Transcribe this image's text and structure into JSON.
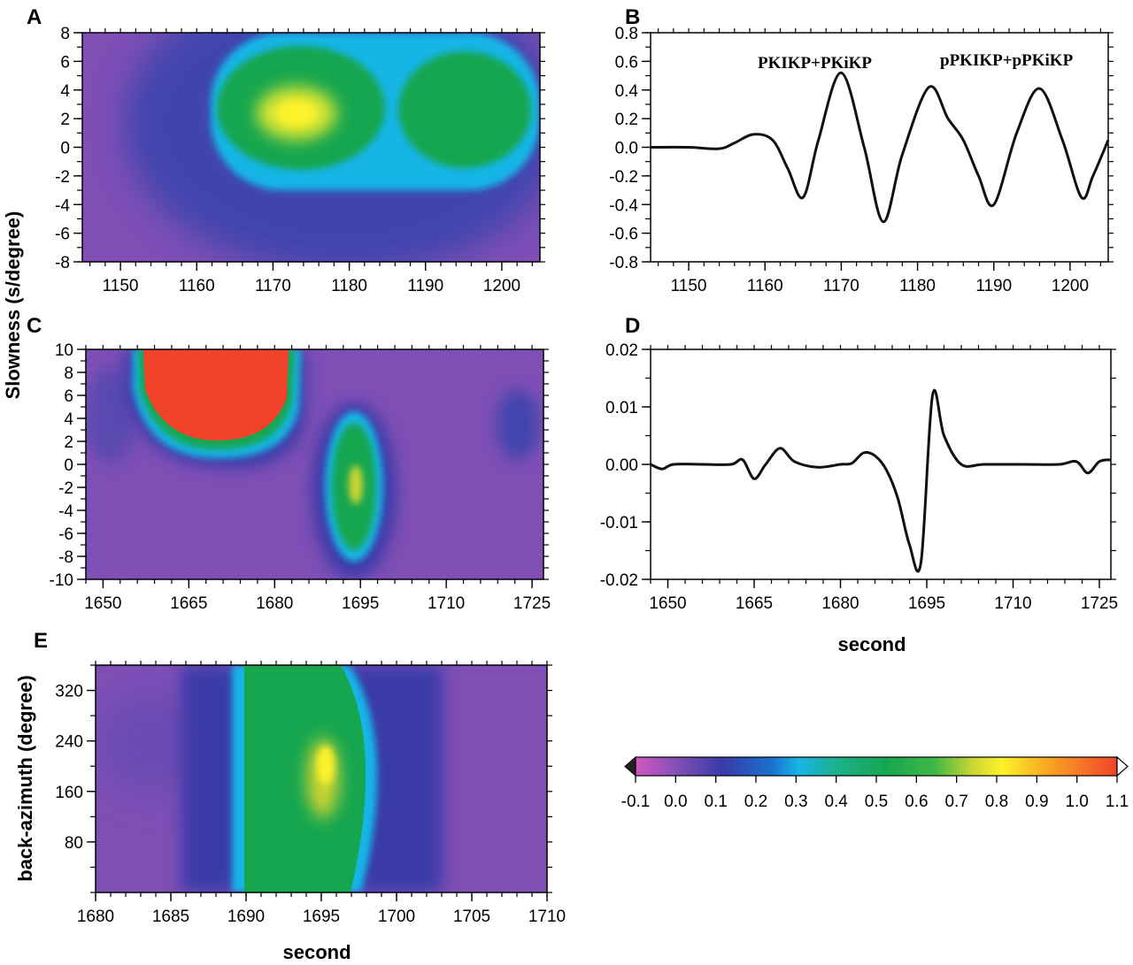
{
  "figure": {
    "shared_ylabel_AC": "Slowness (s/degree)",
    "colorbar": {
      "ticks": [
        "-0.1",
        "0.0",
        "0.1",
        "0.2",
        "0.3",
        "0.4",
        "0.5",
        "0.6",
        "0.7",
        "0.8",
        "0.9",
        "1.0",
        "1.1"
      ],
      "range": [
        -0.1,
        1.1
      ],
      "colormap": [
        "#d257c3",
        "#7f4fb5",
        "#3a3aa8",
        "#1a6fd0",
        "#19b5e6",
        "#1cb08a",
        "#16a650",
        "#3fb845",
        "#cbd433",
        "#fbf22a",
        "#f9a421",
        "#f2432a"
      ]
    }
  },
  "chart_data": [
    {
      "panel": "A",
      "type": "heatmap",
      "xlabel": "",
      "ylabel": "",
      "xlim": [
        1145,
        1205
      ],
      "ylim": [
        -8,
        8
      ],
      "xticks": [
        "1150",
        "1160",
        "1170",
        "1180",
        "1190",
        "1200"
      ],
      "yticks": [
        "8",
        "6",
        "4",
        "2",
        "0",
        "-2",
        "-4",
        "-6",
        "-8"
      ],
      "features": [
        {
          "kind": "broad-energy-lobe",
          "x": 1183,
          "y": 1,
          "peak": 0.28
        },
        {
          "kind": "energy-lobe",
          "x": 1174,
          "y": 1.5,
          "peak": 0.64
        },
        {
          "kind": "energy-lobe",
          "x": 1197,
          "y": 1.5,
          "peak": 0.64
        },
        {
          "kind": "peak",
          "x": 1173,
          "y": 2,
          "peak": 0.85
        }
      ]
    },
    {
      "panel": "B",
      "type": "line",
      "xlabel": "",
      "ylabel": "",
      "xlim": [
        1145,
        1205
      ],
      "ylim": [
        -0.8,
        0.8
      ],
      "xticks": [
        "1150",
        "1160",
        "1170",
        "1180",
        "1190",
        "1200"
      ],
      "yticks": [
        "0.8",
        "0.6",
        "0.4",
        "0.2",
        "0.0",
        "-0.2",
        "-0.4",
        "-0.6",
        "-0.8"
      ],
      "annotations": [
        "PKIKP+PKiKP",
        "pPKIKP+pPKiKP"
      ],
      "x": [
        1145,
        1150,
        1154,
        1156,
        1158.5,
        1161,
        1163,
        1165,
        1167,
        1170,
        1173,
        1175.5,
        1178,
        1181.5,
        1184,
        1186,
        1188,
        1190,
        1193,
        1196,
        1199,
        1201.5,
        1203,
        1205
      ],
      "y": [
        0,
        0,
        -0.01,
        0.03,
        0.09,
        0.05,
        -0.15,
        -0.35,
        0.05,
        0.52,
        0.0,
        -0.52,
        -0.05,
        0.42,
        0.2,
        0.05,
        -0.2,
        -0.4,
        0.1,
        0.41,
        0.05,
        -0.35,
        -0.2,
        0.05
      ]
    },
    {
      "panel": "C",
      "type": "heatmap",
      "xlabel": "",
      "ylabel": "",
      "xlim": [
        1647,
        1727
      ],
      "ylim": [
        -10,
        10
      ],
      "xticks": [
        "1650",
        "1665",
        "1680",
        "1695",
        "1710",
        "1725"
      ],
      "yticks": [
        "10",
        "8",
        "6",
        "4",
        "2",
        "0",
        "-2",
        "-4",
        "-6",
        "-8",
        "-10"
      ],
      "features": [
        {
          "kind": "saturated-region",
          "x": 1666,
          "y": 7,
          "peak": 1.1
        },
        {
          "kind": "energy-lobe",
          "x": 1695,
          "y": -2,
          "peak": 0.6
        },
        {
          "kind": "peak",
          "x": 1695,
          "y": -2,
          "peak": 0.8
        }
      ]
    },
    {
      "panel": "D",
      "type": "line",
      "xlabel": "second",
      "ylabel": "",
      "xlim": [
        1647,
        1727
      ],
      "ylim": [
        -0.02,
        0.02
      ],
      "xticks": [
        "1650",
        "1665",
        "1680",
        "1695",
        "1710",
        "1725"
      ],
      "yticks": [
        "0.02",
        "0.01",
        "0.00",
        "-0.01",
        "-0.02"
      ],
      "x": [
        1647,
        1649,
        1651,
        1656,
        1661,
        1663,
        1665,
        1667,
        1669.5,
        1672,
        1676,
        1680,
        1682,
        1684,
        1686,
        1688,
        1690,
        1692,
        1694,
        1696,
        1698,
        1701,
        1705,
        1712,
        1718,
        1721,
        1723,
        1725,
        1727
      ],
      "y": [
        0,
        -0.0008,
        0,
        0,
        0,
        0.0008,
        -0.0025,
        0,
        0.0028,
        0.0005,
        -0.0005,
        0,
        0.0002,
        0.002,
        0.0015,
        -0.001,
        -0.006,
        -0.014,
        -0.017,
        0.012,
        0.005,
        0,
        0,
        0,
        0,
        0.0005,
        -0.0015,
        0.0005,
        0.0008
      ]
    },
    {
      "panel": "E",
      "type": "heatmap",
      "xlabel": "second",
      "ylabel": "back-azimuth (degree)",
      "xlim": [
        1680,
        1710
      ],
      "ylim": [
        0,
        360
      ],
      "xticks": [
        "1680",
        "1685",
        "1690",
        "1695",
        "1700",
        "1705",
        "1710"
      ],
      "yticks": [
        "320",
        "240",
        "160",
        "80"
      ],
      "features": [
        {
          "kind": "vertical-band",
          "x_from": 1689.5,
          "x_to": 1698.5,
          "peak": 0.3
        },
        {
          "kind": "energy-lobe",
          "x_from": 1690.3,
          "x_to": 1697.5,
          "peak": 0.62
        },
        {
          "kind": "peak",
          "x": 1695.3,
          "y": 210,
          "peak": 0.85
        }
      ]
    }
  ]
}
